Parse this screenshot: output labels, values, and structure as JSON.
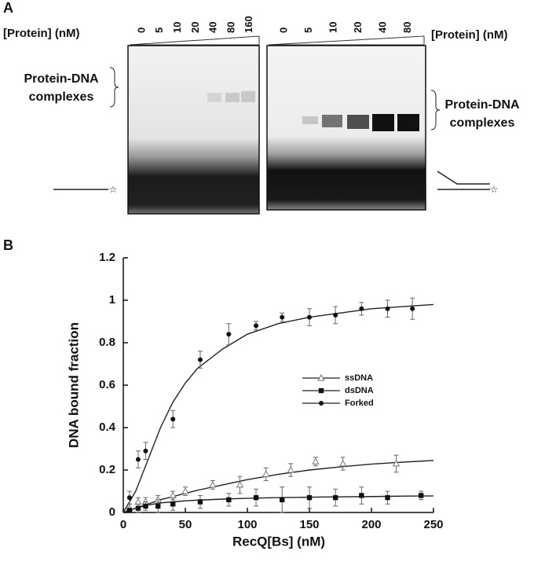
{
  "panel_a": {
    "label": "A",
    "left_gel": {
      "axis_label": "[Protein] (nM)",
      "lanes": [
        0,
        5,
        10,
        20,
        40,
        80,
        160
      ],
      "complex_label": [
        "Protein-DNA",
        "complexes"
      ]
    },
    "right_gel": {
      "axis_label": "[Protein] (nM)",
      "lanes": [
        0,
        5,
        10,
        20,
        40,
        80
      ],
      "complex_label": [
        "Protein-DNA",
        "complexes"
      ]
    }
  },
  "panel_b": {
    "label": "B"
  },
  "chart_data": {
    "type": "scatter",
    "x_label": "RecQ[Bs] (nM)",
    "y_label": "DNA bound fraction",
    "xlim": [
      0,
      250
    ],
    "xticks": [
      0,
      50,
      100,
      150,
      200,
      250
    ],
    "ylim": [
      0,
      1.2
    ],
    "yticks": [
      0,
      0.2,
      0.4,
      0.6,
      0.8,
      1,
      1.2
    ],
    "legend": "center",
    "series": [
      {
        "name": "ssDNA",
        "color": "#777777",
        "marker": "triangle-open",
        "x": [
          5,
          12,
          18,
          28,
          40,
          50,
          72,
          94,
          115,
          135,
          155,
          177,
          220
        ],
        "values": [
          0.02,
          0.05,
          0.05,
          0.06,
          0.08,
          0.1,
          0.13,
          0.13,
          0.18,
          0.2,
          0.24,
          0.23,
          0.23
        ],
        "errors": [
          0.02,
          0.02,
          0.02,
          0.02,
          0.02,
          0.02,
          0.02,
          0.04,
          0.03,
          0.03,
          0.02,
          0.03,
          0.04
        ],
        "curve": {
          "x": [
            0,
            10,
            20,
            30,
            40,
            50,
            60,
            80,
            100,
            125,
            150,
            175,
            200,
            225,
            250
          ],
          "values": [
            0,
            0.02,
            0.04,
            0.06,
            0.075,
            0.09,
            0.105,
            0.13,
            0.155,
            0.18,
            0.2,
            0.215,
            0.228,
            0.237,
            0.245
          ]
        }
      },
      {
        "name": "dsDNA",
        "color": "#111111",
        "marker": "square",
        "x": [
          5,
          12,
          18,
          28,
          40,
          62,
          85,
          107,
          128,
          150,
          171,
          192,
          213,
          240
        ],
        "values": [
          0.01,
          0.02,
          0.03,
          0.03,
          0.04,
          0.05,
          0.06,
          0.07,
          0.06,
          0.07,
          0.07,
          0.08,
          0.07,
          0.08
        ],
        "errors": [
          0.01,
          0.02,
          0.02,
          0.03,
          0.03,
          0.03,
          0.03,
          0.04,
          0.06,
          0.05,
          0.04,
          0.04,
          0.03,
          0.02
        ],
        "curve": {
          "x": [
            0,
            10,
            20,
            30,
            40,
            50,
            60,
            80,
            100,
            125,
            150,
            175,
            200,
            225,
            250
          ],
          "values": [
            0,
            0.02,
            0.035,
            0.045,
            0.05,
            0.055,
            0.058,
            0.063,
            0.067,
            0.07,
            0.072,
            0.074,
            0.075,
            0.077,
            0.078
          ]
        }
      },
      {
        "name": "Forked",
        "color": "#111111",
        "marker": "circle",
        "x": [
          5,
          12,
          18,
          40,
          62,
          85,
          107,
          128,
          150,
          171,
          192,
          213,
          233
        ],
        "values": [
          0.07,
          0.25,
          0.29,
          0.44,
          0.72,
          0.84,
          0.88,
          0.92,
          0.92,
          0.93,
          0.96,
          0.96,
          0.96
        ],
        "errors": [
          0.03,
          0.04,
          0.04,
          0.04,
          0.04,
          0.05,
          0.02,
          0.02,
          0.04,
          0.04,
          0.03,
          0.04,
          0.05
        ],
        "curve": {
          "x": [
            0,
            10,
            20,
            30,
            40,
            50,
            60,
            80,
            100,
            125,
            150,
            175,
            200,
            225,
            250
          ],
          "values": [
            0,
            0.1,
            0.25,
            0.4,
            0.52,
            0.61,
            0.68,
            0.77,
            0.84,
            0.89,
            0.92,
            0.94,
            0.96,
            0.97,
            0.98
          ]
        }
      }
    ]
  }
}
